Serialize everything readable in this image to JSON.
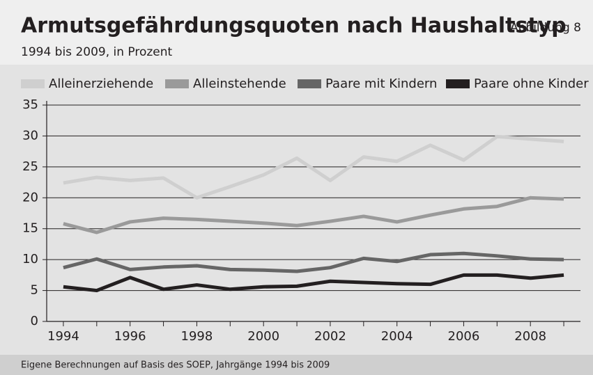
{
  "chart_data": {
    "type": "line",
    "title": "Armutsgefährdungsquoten nach Haushaltstyp",
    "figure_label": "Abbildung 8",
    "subtitle": "1994 bis 2009, in Prozent",
    "source": "Eigene Berechnungen auf Basis des SOEP, Jahrgänge 1994 bis 2009",
    "x": [
      1994,
      1995,
      1996,
      1997,
      1998,
      1999,
      2000,
      2001,
      2002,
      2003,
      2004,
      2005,
      2006,
      2007,
      2008,
      2009
    ],
    "series": [
      {
        "name": "Alleinerziehende",
        "color": "#cfcfcf",
        "values": [
          22.4,
          23.3,
          22.8,
          23.2,
          20.0,
          21.8,
          23.7,
          26.4,
          22.8,
          26.6,
          25.9,
          28.5,
          26.1,
          29.9,
          29.5,
          29.1
        ]
      },
      {
        "name": "Alleinstehende",
        "color": "#9a9a9a",
        "values": [
          15.8,
          14.4,
          16.1,
          16.7,
          16.5,
          16.2,
          15.9,
          15.5,
          16.2,
          17.0,
          16.1,
          17.2,
          18.2,
          18.6,
          20.0,
          19.8
        ]
      },
      {
        "name": "Paare mit Kindern",
        "color": "#666666",
        "values": [
          8.7,
          10.1,
          8.4,
          8.8,
          9.0,
          8.4,
          8.3,
          8.1,
          8.7,
          10.2,
          9.7,
          10.8,
          11.0,
          10.6,
          10.1,
          10.0
        ]
      },
      {
        "name": "Paare ohne Kinder",
        "color": "#231f20",
        "values": [
          5.6,
          5.0,
          7.1,
          5.2,
          5.9,
          5.2,
          5.6,
          5.7,
          6.5,
          6.3,
          6.1,
          6.0,
          7.5,
          7.5,
          7.0,
          7.5
        ]
      }
    ],
    "xlim": [
      1993.5,
      2009.5
    ],
    "xticks": [
      1994,
      1996,
      1998,
      2000,
      2002,
      2004,
      2006,
      2008
    ],
    "xminor_ticks": [
      1995,
      1997,
      1999,
      2001,
      2003,
      2005,
      2007,
      2009
    ],
    "ylim": [
      0,
      35
    ],
    "yticks": [
      0,
      5,
      10,
      15,
      20,
      25,
      30,
      35
    ],
    "grid": true,
    "legend": "top"
  }
}
